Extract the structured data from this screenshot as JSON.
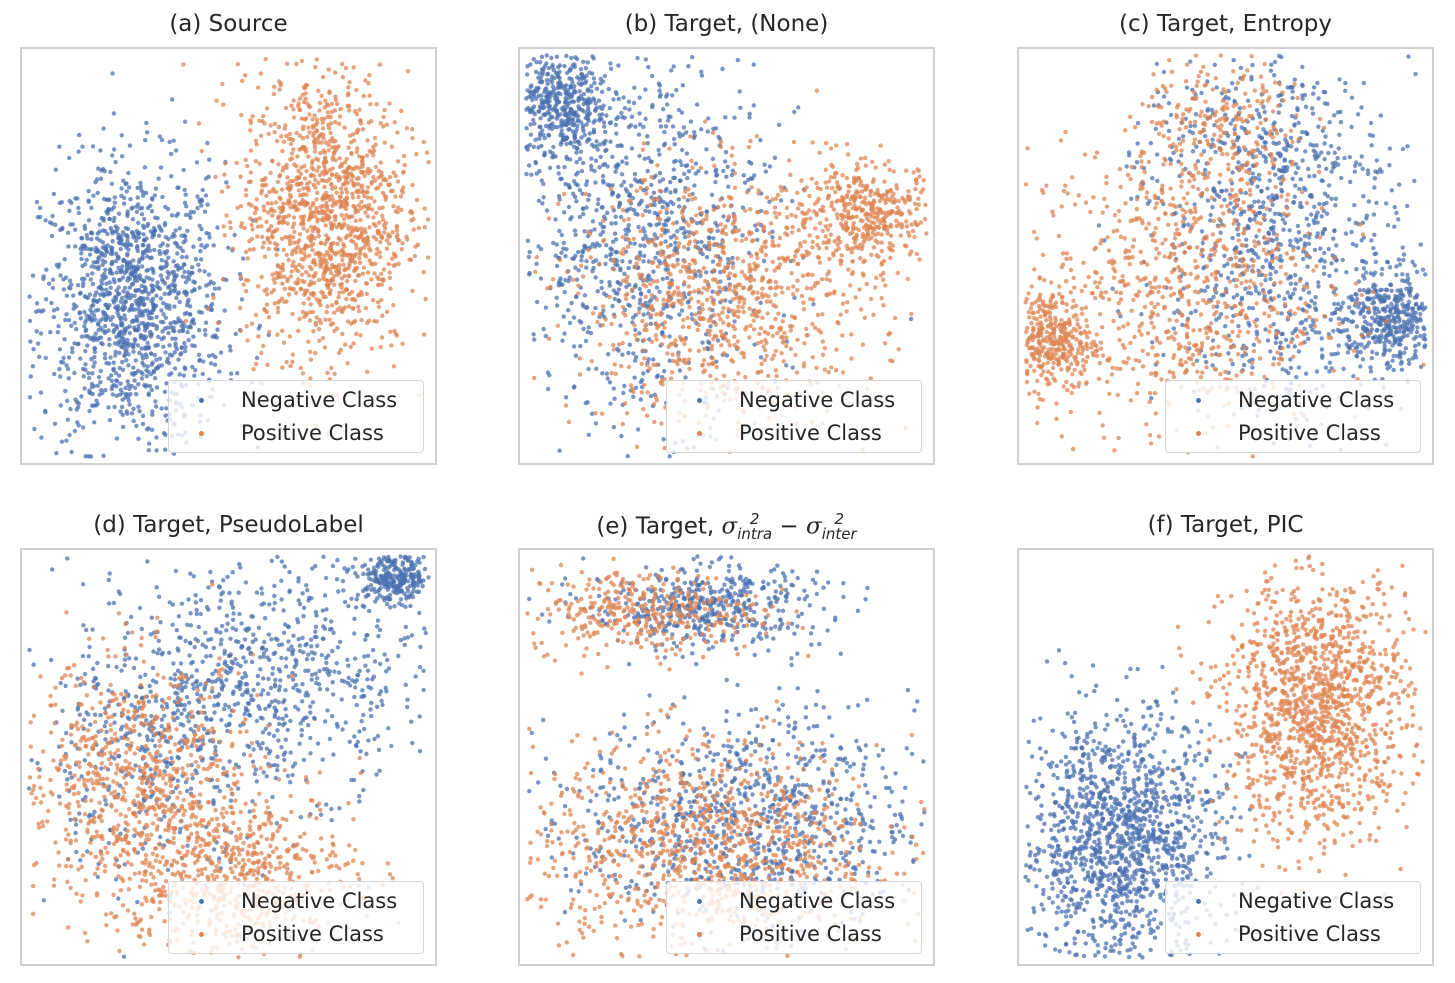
{
  "chart_data": [
    {
      "type": "scatter",
      "title": "(a) Source",
      "legend_position": "lower-right",
      "grid": false,
      "series": [
        {
          "name": "Negative Class",
          "color": "#4c72b0",
          "clusters": [
            {
              "cx": 27,
              "cy": 38,
              "sx": 11,
              "sy": 17,
              "n": 1300
            }
          ]
        },
        {
          "name": "Positive Class",
          "color": "#dd8452",
          "clusters": [
            {
              "cx": 73,
              "cy": 60,
              "sx": 10,
              "sy": 17,
              "n": 1300
            }
          ]
        }
      ]
    },
    {
      "type": "scatter",
      "title": "(b) Target, (None)",
      "legend_position": "lower-right",
      "grid": false,
      "series": [
        {
          "name": "Negative Class",
          "color": "#4c72b0",
          "clusters": [
            {
              "cx": 10,
              "cy": 86,
              "sx": 6,
              "sy": 7,
              "n": 400
            },
            {
              "cx": 30,
              "cy": 55,
              "sx": 15,
              "sy": 22,
              "n": 900
            }
          ]
        },
        {
          "name": "Positive Class",
          "color": "#dd8452",
          "clusters": [
            {
              "cx": 84,
              "cy": 60,
              "sx": 9,
              "sy": 6,
              "n": 400
            },
            {
              "cx": 50,
              "cy": 40,
              "sx": 18,
              "sy": 15,
              "n": 900
            }
          ]
        }
      ]
    },
    {
      "type": "scatter",
      "title": "(c) Target, Entropy",
      "legend_position": "lower-right",
      "grid": false,
      "series": [
        {
          "name": "Negative Class",
          "color": "#4c72b0",
          "clusters": [
            {
              "cx": 90,
              "cy": 35,
              "sx": 6,
              "sy": 6,
              "n": 350
            },
            {
              "cx": 65,
              "cy": 50,
              "sx": 15,
              "sy": 20,
              "n": 700
            },
            {
              "cx": 55,
              "cy": 75,
              "sx": 12,
              "sy": 12,
              "n": 250
            }
          ]
        },
        {
          "name": "Positive Class",
          "color": "#dd8452",
          "clusters": [
            {
              "cx": 8,
              "cy": 30,
              "sx": 5,
              "sy": 6,
              "n": 300
            },
            {
              "cx": 38,
              "cy": 42,
              "sx": 18,
              "sy": 18,
              "n": 750
            },
            {
              "cx": 50,
              "cy": 78,
              "sx": 10,
              "sy": 12,
              "n": 250
            }
          ]
        }
      ]
    },
    {
      "type": "scatter",
      "title": "(d) Target, PseudoLabel",
      "legend_position": "lower-right",
      "grid": false,
      "series": [
        {
          "name": "Negative Class",
          "color": "#4c72b0",
          "clusters": [
            {
              "cx": 90,
              "cy": 93,
              "sx": 5,
              "sy": 3,
              "n": 250
            },
            {
              "cx": 62,
              "cy": 70,
              "sx": 18,
              "sy": 14,
              "n": 650
            },
            {
              "cx": 30,
              "cy": 52,
              "sx": 15,
              "sy": 15,
              "n": 400
            }
          ]
        },
        {
          "name": "Positive Class",
          "color": "#dd8452",
          "clusters": [
            {
              "cx": 28,
              "cy": 45,
              "sx": 15,
              "sy": 14,
              "n": 650
            },
            {
              "cx": 50,
              "cy": 22,
              "sx": 15,
              "sy": 10,
              "n": 650
            }
          ]
        }
      ]
    },
    {
      "type": "scatter",
      "title": {
        "prefix": "(e) Target, ",
        "symbol": "σ",
        "sup": "2",
        "sub1": "intra",
        "op": " − ",
        "sub2": "inter"
      },
      "legend_position": "lower-right",
      "grid": false,
      "series": [
        {
          "name": "Negative Class",
          "color": "#4c72b0",
          "clusters": [
            {
              "cx": 45,
              "cy": 86,
              "sx": 14,
              "sy": 5,
              "n": 450
            },
            {
              "cx": 55,
              "cy": 35,
              "sx": 20,
              "sy": 13,
              "n": 850
            }
          ]
        },
        {
          "name": "Positive Class",
          "color": "#dd8452",
          "clusters": [
            {
              "cx": 30,
              "cy": 85,
              "sx": 14,
              "sy": 5,
              "n": 350
            },
            {
              "cx": 45,
              "cy": 28,
              "sx": 21,
              "sy": 13,
              "n": 950
            }
          ]
        }
      ]
    },
    {
      "type": "scatter",
      "title": "(f) Target, PIC",
      "legend_position": "lower-right",
      "grid": false,
      "series": [
        {
          "name": "Negative Class",
          "color": "#4c72b0",
          "clusters": [
            {
              "cx": 25,
              "cy": 30,
              "sx": 12,
              "sy": 15,
              "n": 1300
            }
          ]
        },
        {
          "name": "Positive Class",
          "color": "#dd8452",
          "clusters": [
            {
              "cx": 72,
              "cy": 62,
              "sx": 11,
              "sy": 16,
              "n": 1300
            }
          ]
        }
      ]
    }
  ]
}
